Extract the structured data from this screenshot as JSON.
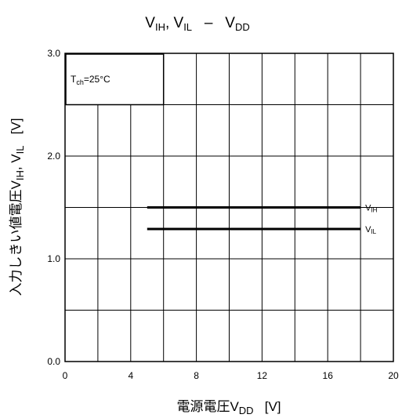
{
  "chart_data": {
    "type": "line",
    "title": {
      "parts": [
        {
          "t": "V"
        },
        {
          "t": "IH",
          "sub": true
        },
        {
          "t": ", V"
        },
        {
          "t": "IL",
          "sub": true
        },
        {
          "t": "   –   V"
        },
        {
          "t": "DD",
          "sub": true
        }
      ]
    },
    "xlabel": {
      "parts": [
        {
          "t": "電源電圧V"
        },
        {
          "t": "DD",
          "sub": true
        },
        {
          "t": "   [V]"
        }
      ]
    },
    "ylabel": {
      "parts": [
        {
          "t": "入力しきい値電圧V"
        },
        {
          "t": "IH",
          "sub": true
        },
        {
          "t": ", V"
        },
        {
          "t": "IL",
          "sub": true
        },
        {
          "t": "   [V]"
        }
      ]
    },
    "xlim": [
      0,
      20
    ],
    "ylim": [
      0,
      3
    ],
    "x_ticks": [
      0,
      4,
      8,
      12,
      16,
      20
    ],
    "x_tick_labels": [
      "0",
      "4",
      "8",
      "12",
      "16",
      "20"
    ],
    "x_grid_step": 2,
    "y_ticks": [
      0,
      1,
      2,
      3
    ],
    "y_tick_labels": [
      "0.0",
      "1.0",
      "2.0",
      "3.0"
    ],
    "y_grid_step": 0.5,
    "grid": true,
    "annotation": {
      "main": "T",
      "sub": "ch",
      "rest": "=25°C"
    },
    "series": [
      {
        "name": "V",
        "name_sub": "IH",
        "x": [
          5,
          18
        ],
        "y": [
          1.5,
          1.5
        ]
      },
      {
        "name": "V",
        "name_sub": "IL",
        "x": [
          5,
          18
        ],
        "y": [
          1.29,
          1.29
        ]
      }
    ],
    "colors": {
      "line": "#000000",
      "grid": "#000000",
      "background": "#ffffff"
    }
  }
}
